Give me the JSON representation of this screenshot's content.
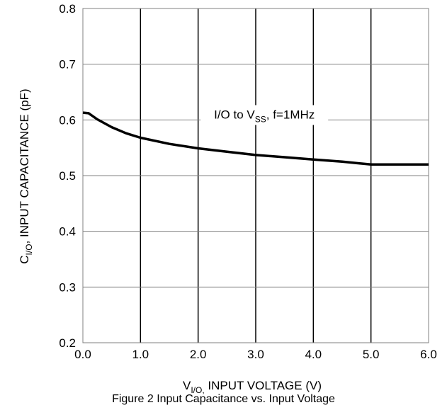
{
  "chart_data": {
    "type": "line",
    "xlabel": {
      "prefix": "V",
      "sub": "I/O,",
      "suffix": " INPUT VOLTAGE (V)"
    },
    "ylabel": {
      "prefix": "C",
      "sub": "I/O",
      "suffix": ", INPUT CAPACITANCE (pF)"
    },
    "xlim": [
      0,
      6
    ],
    "ylim": [
      0.2,
      0.8
    ],
    "xticks": [
      "0.0",
      "1.0",
      "2.0",
      "3.0",
      "4.0",
      "5.0",
      "6.0"
    ],
    "yticks": [
      "0.2",
      "0.3",
      "0.4",
      "0.5",
      "0.6",
      "0.7",
      "0.8"
    ],
    "grid": true,
    "annotation": {
      "prefix": "I/O to V",
      "sub": "SS",
      "suffix": ", f=1MHz"
    },
    "series": [
      {
        "color": "#000000",
        "x": [
          0,
          0.1,
          0.25,
          0.5,
          0.75,
          1.0,
          1.5,
          2.0,
          2.5,
          3.0,
          3.5,
          4.0,
          4.5,
          5.0,
          5.5,
          6.0
        ],
        "y": [
          0.613,
          0.612,
          0.601,
          0.587,
          0.576,
          0.568,
          0.557,
          0.549,
          0.543,
          0.537,
          0.533,
          0.529,
          0.525,
          0.52,
          0.52,
          0.52
        ]
      }
    ]
  },
  "caption": "Figure 2 Input Capacitance vs. Input Voltage"
}
